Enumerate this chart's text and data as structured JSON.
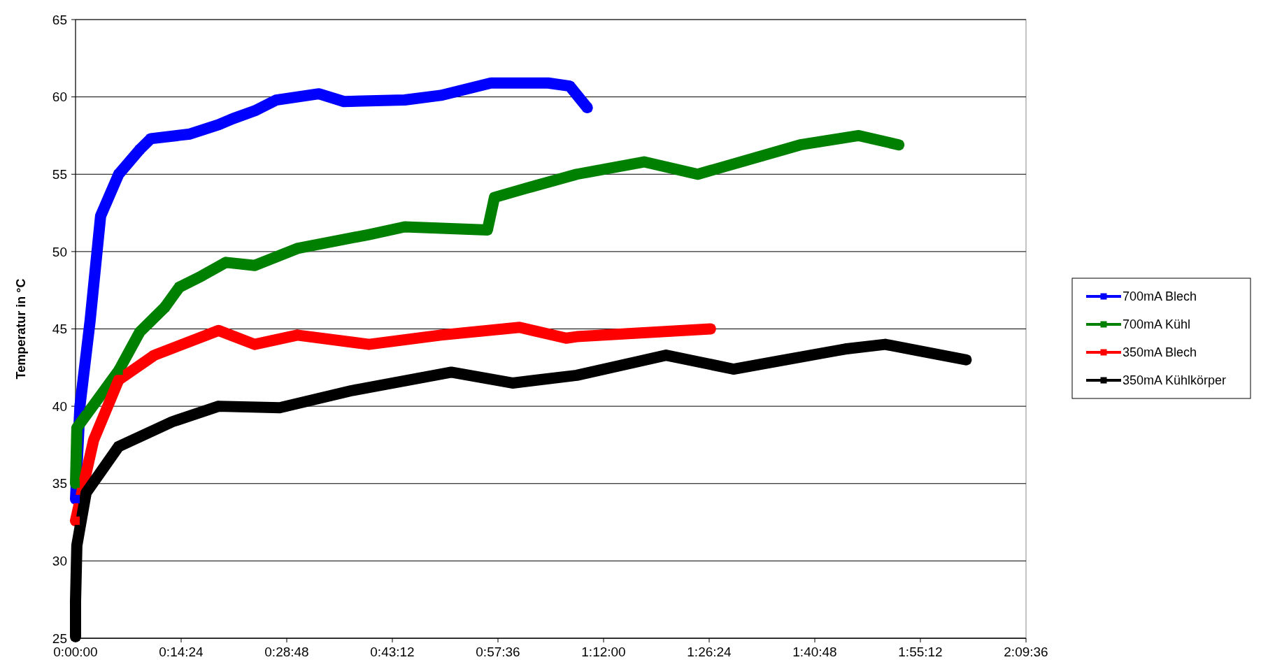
{
  "chart_data": {
    "type": "line",
    "ylabel": "Temperatur in °C",
    "xlim": [
      0,
      2.16
    ],
    "ylim": [
      25,
      65
    ],
    "xticks": [
      {
        "value": 0,
        "label": "0:00:00"
      },
      {
        "value": 0.24,
        "label": "0:14:24"
      },
      {
        "value": 0.48,
        "label": "0:28:48"
      },
      {
        "value": 0.72,
        "label": "0:43:12"
      },
      {
        "value": 0.96,
        "label": "0:57:36"
      },
      {
        "value": 1.2,
        "label": "1:12:00"
      },
      {
        "value": 1.44,
        "label": "1:26:24"
      },
      {
        "value": 1.68,
        "label": "1:40:48"
      },
      {
        "value": 1.92,
        "label": "1:55:12"
      },
      {
        "value": 2.16,
        "label": "2:09:36"
      }
    ],
    "yticks": [
      25,
      30,
      35,
      40,
      45,
      50,
      55,
      60,
      65
    ],
    "grid": "y",
    "legend": "right",
    "marker": "square",
    "line_style": "solid",
    "series": [
      {
        "name": "700mA Blech",
        "color": "#0000ff",
        "x": [
          0,
          0.01,
          0.033,
          0.057,
          0.098,
          0.146,
          0.171,
          0.26,
          0.325,
          0.358,
          0.407,
          0.456,
          0.553,
          0.61,
          0.748,
          0.83,
          0.944,
          1.074,
          1.123,
          1.163
        ],
        "values": [
          34,
          40,
          45.5,
          52.3,
          55,
          56.6,
          57.3,
          57.6,
          58.2,
          58.6,
          59.1,
          59.8,
          60.2,
          59.7,
          59.8,
          60.1,
          60.9,
          60.9,
          60.7,
          59.3
        ]
      },
      {
        "name": "700mA Kühl",
        "color": "#008000",
        "x": [
          0,
          0.003,
          0.098,
          0.146,
          0.203,
          0.236,
          0.285,
          0.342,
          0.407,
          0.504,
          0.667,
          0.748,
          0.936,
          0.952,
          1.025,
          1.139,
          1.292,
          1.414,
          1.647,
          1.78,
          1.871
        ],
        "values": [
          35,
          38.6,
          42.3,
          44.8,
          46.4,
          47.7,
          48.4,
          49.3,
          49.1,
          50.2,
          51.1,
          51.6,
          51.4,
          53.5,
          54.1,
          55,
          55.8,
          55,
          56.9,
          57.5,
          56.9
        ]
      },
      {
        "name": "350mA Blech",
        "color": "#ff0000",
        "x": [
          0,
          0.041,
          0.098,
          0.179,
          0.325,
          0.407,
          0.504,
          0.667,
          0.83,
          1.009,
          1.115,
          1.139,
          1.443
        ],
        "values": [
          32.6,
          37.8,
          41.7,
          43.3,
          44.9,
          44,
          44.6,
          44,
          44.6,
          45.1,
          44.4,
          44.5,
          45
        ]
      },
      {
        "name": "350mA Kühlkörper",
        "color": "#000000",
        "x": [
          0,
          0,
          0.003,
          0.024,
          0.098,
          0.22,
          0.325,
          0.464,
          0.626,
          0.854,
          0.993,
          1.139,
          1.342,
          1.495,
          1.749,
          1.84,
          2.024
        ],
        "values": [
          25.1,
          27.4,
          31,
          34.4,
          37.4,
          39,
          40,
          39.9,
          41,
          42.2,
          41.5,
          42,
          43.3,
          42.4,
          43.7,
          44,
          43
        ]
      }
    ]
  }
}
